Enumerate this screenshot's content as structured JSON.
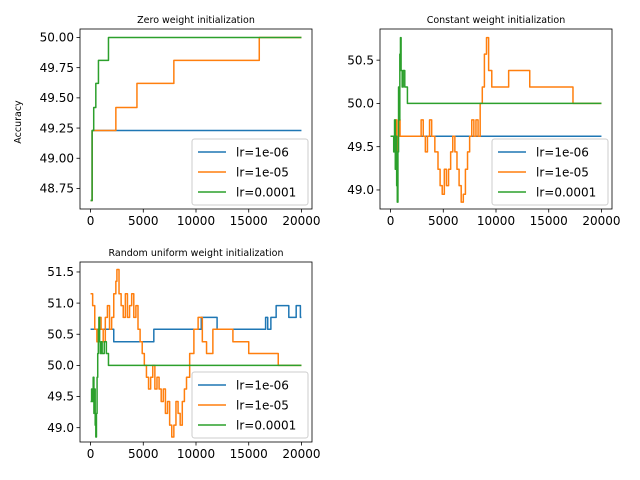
{
  "figure": {
    "ylabel": "Accuracy"
  },
  "chart_data": [
    {
      "type": "line",
      "title": "Zero weight initialization",
      "xlabel": "",
      "ylabel": "Accuracy",
      "xlim": [
        -1000,
        21000
      ],
      "ylim": [
        48.58,
        50.07
      ],
      "xticks": [
        0,
        5000,
        10000,
        15000,
        20000
      ],
      "yticks": [
        48.75,
        49.0,
        49.25,
        49.5,
        49.75,
        50.0
      ],
      "ytick_labels": [
        "48.75",
        "49.00",
        "49.25",
        "49.50",
        "49.75",
        "50.00"
      ],
      "grid": false,
      "legend_position": "lower-right",
      "series": [
        {
          "name": "lr=1e-06",
          "color": "#1f77b4",
          "step": true,
          "points": [
            [
              0,
              48.65
            ],
            [
              150,
              49.23
            ],
            [
              20000,
              49.23
            ]
          ]
        },
        {
          "name": "lr=1e-05",
          "color": "#ff7f0e",
          "step": true,
          "points": [
            [
              0,
              48.65
            ],
            [
              150,
              49.23
            ],
            [
              2400,
              49.42
            ],
            [
              4400,
              49.62
            ],
            [
              7900,
              49.81
            ],
            [
              16000,
              50.0
            ],
            [
              20000,
              50.0
            ]
          ]
        },
        {
          "name": "lr=0.0001",
          "color": "#2ca02c",
          "step": true,
          "points": [
            [
              0,
              48.65
            ],
            [
              150,
              49.23
            ],
            [
              300,
              49.42
            ],
            [
              500,
              49.62
            ],
            [
              750,
              49.81
            ],
            [
              1100,
              49.81
            ],
            [
              1700,
              50.0
            ],
            [
              20000,
              50.0
            ]
          ]
        }
      ]
    },
    {
      "type": "line",
      "title": "Constant weight initialization",
      "xlabel": "",
      "ylabel": "",
      "xlim": [
        -1000,
        21000
      ],
      "ylim": [
        48.78,
        50.86
      ],
      "xticks": [
        0,
        5000,
        10000,
        15000,
        20000
      ],
      "yticks": [
        49.0,
        49.5,
        50.0,
        50.5
      ],
      "ytick_labels": [
        "49.0",
        "49.5",
        "50.0",
        "50.5"
      ],
      "grid": false,
      "legend_position": "lower-right",
      "series": [
        {
          "name": "lr=1e-06",
          "color": "#1f77b4",
          "step": true,
          "points": [
            [
              0,
              49.62
            ],
            [
              20000,
              49.62
            ]
          ]
        },
        {
          "name": "lr=1e-05",
          "color": "#ff7f0e",
          "step": true,
          "points": [
            [
              0,
              49.62
            ],
            [
              400,
              49.62
            ],
            [
              500,
              49.81
            ],
            [
              600,
              49.44
            ],
            [
              700,
              49.62
            ],
            [
              800,
              49.81
            ],
            [
              900,
              49.62
            ],
            [
              1200,
              49.62
            ],
            [
              2700,
              49.62
            ],
            [
              2900,
              49.81
            ],
            [
              3100,
              49.62
            ],
            [
              3300,
              49.44
            ],
            [
              3500,
              49.62
            ],
            [
              3700,
              49.81
            ],
            [
              3900,
              49.62
            ],
            [
              4200,
              49.44
            ],
            [
              4500,
              49.24
            ],
            [
              4700,
              49.05
            ],
            [
              4900,
              48.95
            ],
            [
              5100,
              49.24
            ],
            [
              5300,
              49.05
            ],
            [
              5500,
              49.24
            ],
            [
              5700,
              49.44
            ],
            [
              5900,
              49.62
            ],
            [
              6100,
              49.44
            ],
            [
              6300,
              49.24
            ],
            [
              6500,
              49.05
            ],
            [
              6700,
              48.86
            ],
            [
              6900,
              48.95
            ],
            [
              7100,
              49.24
            ],
            [
              7300,
              49.44
            ],
            [
              7500,
              49.62
            ],
            [
              7700,
              49.81
            ],
            [
              7900,
              49.62
            ],
            [
              8100,
              49.81
            ],
            [
              8300,
              49.62
            ],
            [
              8500,
              50.0
            ],
            [
              8700,
              50.19
            ],
            [
              8900,
              50.57
            ],
            [
              9100,
              50.76
            ],
            [
              9300,
              50.38
            ],
            [
              9600,
              50.19
            ],
            [
              11200,
              50.38
            ],
            [
              13200,
              50.19
            ],
            [
              17300,
              50.0
            ],
            [
              20000,
              50.0
            ]
          ]
        },
        {
          "name": "lr=0.0001",
          "color": "#2ca02c",
          "step": true,
          "points": [
            [
              0,
              49.62
            ],
            [
              200,
              49.62
            ],
            [
              300,
              49.44
            ],
            [
              380,
              49.81
            ],
            [
              450,
              49.24
            ],
            [
              520,
              49.62
            ],
            [
              580,
              49.05
            ],
            [
              640,
              48.86
            ],
            [
              700,
              49.44
            ],
            [
              760,
              50.19
            ],
            [
              820,
              49.81
            ],
            [
              880,
              50.57
            ],
            [
              940,
              50.76
            ],
            [
              1000,
              50.38
            ],
            [
              1100,
              50.19
            ],
            [
              1200,
              50.38
            ],
            [
              1350,
              50.19
            ],
            [
              1600,
              50.0
            ],
            [
              20000,
              50.0
            ]
          ]
        }
      ]
    },
    {
      "type": "line",
      "title": "Random uniform weight initialization",
      "xlabel": "",
      "ylabel": "",
      "xlim": [
        -1000,
        21000
      ],
      "ylim": [
        48.77,
        51.66
      ],
      "xticks": [
        0,
        5000,
        10000,
        15000,
        20000
      ],
      "yticks": [
        49.0,
        49.5,
        50.0,
        50.5,
        51.0,
        51.5
      ],
      "ytick_labels": [
        "49.0",
        "49.5",
        "50.0",
        "50.5",
        "51.0",
        "51.5"
      ],
      "grid": false,
      "legend_position": "lower-right",
      "series": [
        {
          "name": "lr=1e-06",
          "color": "#1f77b4",
          "step": true,
          "points": [
            [
              0,
              50.58
            ],
            [
              2100,
              50.58
            ],
            [
              2200,
              50.38
            ],
            [
              6000,
              50.58
            ],
            [
              10000,
              50.58
            ],
            [
              10500,
              50.77
            ],
            [
              11000,
              50.77
            ],
            [
              12000,
              50.58
            ],
            [
              15000,
              50.58
            ],
            [
              15800,
              50.58
            ],
            [
              16600,
              50.77
            ],
            [
              16800,
              50.58
            ],
            [
              17100,
              50.77
            ],
            [
              17600,
              50.96
            ],
            [
              18200,
              50.96
            ],
            [
              18800,
              50.77
            ],
            [
              19500,
              50.96
            ],
            [
              19900,
              50.77
            ],
            [
              20000,
              50.77
            ]
          ]
        },
        {
          "name": "lr=1e-05",
          "color": "#ff7f0e",
          "step": true,
          "points": [
            [
              0,
              51.15
            ],
            [
              200,
              50.96
            ],
            [
              400,
              50.58
            ],
            [
              600,
              50.38
            ],
            [
              800,
              50.77
            ],
            [
              1000,
              50.58
            ],
            [
              1200,
              50.38
            ],
            [
              1400,
              50.77
            ],
            [
              1600,
              50.96
            ],
            [
              1800,
              50.58
            ],
            [
              2000,
              50.77
            ],
            [
              2200,
              51.15
            ],
            [
              2400,
              51.35
            ],
            [
              2500,
              51.54
            ],
            [
              2700,
              51.15
            ],
            [
              2900,
              50.96
            ],
            [
              3100,
              50.77
            ],
            [
              3300,
              51.15
            ],
            [
              3500,
              50.77
            ],
            [
              3700,
              50.96
            ],
            [
              3900,
              51.15
            ],
            [
              4100,
              50.77
            ],
            [
              4300,
              50.96
            ],
            [
              4500,
              50.58
            ],
            [
              4700,
              50.38
            ],
            [
              4900,
              50.19
            ],
            [
              5100,
              50.0
            ],
            [
              5300,
              49.81
            ],
            [
              5500,
              49.62
            ],
            [
              5700,
              49.81
            ],
            [
              5900,
              50.0
            ],
            [
              6100,
              49.62
            ],
            [
              6300,
              49.81
            ],
            [
              6500,
              49.62
            ],
            [
              6700,
              49.42
            ],
            [
              6900,
              49.62
            ],
            [
              7100,
              49.23
            ],
            [
              7300,
              49.42
            ],
            [
              7500,
              49.04
            ],
            [
              7700,
              48.85
            ],
            [
              7900,
              49.04
            ],
            [
              8100,
              49.42
            ],
            [
              8300,
              49.23
            ],
            [
              8500,
              49.04
            ],
            [
              8700,
              49.42
            ],
            [
              8900,
              49.62
            ],
            [
              9100,
              49.81
            ],
            [
              9400,
              50.19
            ],
            [
              9800,
              50.58
            ],
            [
              10200,
              50.77
            ],
            [
              10600,
              50.38
            ],
            [
              11000,
              50.19
            ],
            [
              11600,
              50.58
            ],
            [
              13500,
              50.38
            ],
            [
              15000,
              50.19
            ],
            [
              17800,
              50.0
            ],
            [
              20000,
              50.0
            ]
          ]
        },
        {
          "name": "lr=0.0001",
          "color": "#2ca02c",
          "step": true,
          "points": [
            [
              0,
              49.42
            ],
            [
              100,
              49.62
            ],
            [
              180,
              49.42
            ],
            [
              250,
              49.81
            ],
            [
              320,
              49.23
            ],
            [
              380,
              49.62
            ],
            [
              440,
              49.04
            ],
            [
              500,
              48.85
            ],
            [
              560,
              49.23
            ],
            [
              620,
              49.81
            ],
            [
              680,
              50.19
            ],
            [
              740,
              50.58
            ],
            [
              800,
              50.77
            ],
            [
              860,
              50.38
            ],
            [
              920,
              50.19
            ],
            [
              1000,
              50.38
            ],
            [
              1100,
              50.19
            ],
            [
              1300,
              50.38
            ],
            [
              1500,
              50.19
            ],
            [
              1700,
              50.0
            ],
            [
              20000,
              50.0
            ]
          ]
        }
      ]
    }
  ]
}
